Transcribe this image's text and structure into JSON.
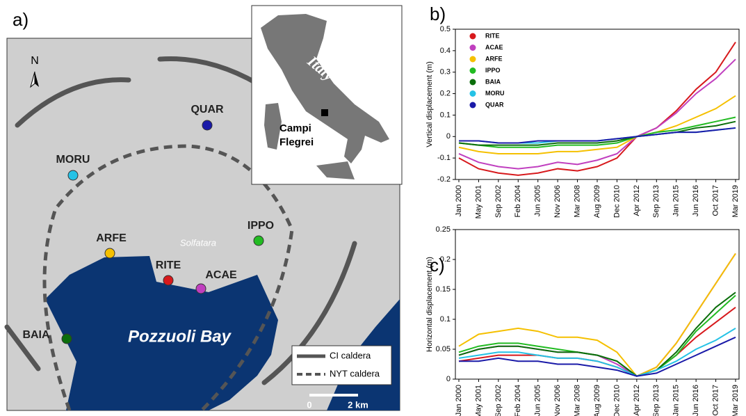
{
  "map": {
    "panel": "a)",
    "north": "N",
    "stations": [
      "QUAR",
      "MORU",
      "IPPO",
      "ARFE",
      "RITE",
      "ACAE",
      "BAIA"
    ],
    "solfatara": "Solfatara",
    "bay": "Pozzuoli Bay",
    "inset": {
      "country": "Italy",
      "site": [
        "Campi",
        "Flegrei"
      ]
    },
    "legend": [
      "CI caldera",
      "NYT caldera"
    ],
    "scale": [
      "0",
      "2 km"
    ]
  },
  "chart_data": [
    {
      "type": "line",
      "panel": "b)",
      "ylabel": "Vertical displacement (m)",
      "legend": "upper left",
      "categories": [
        "Jan 2000",
        "May 2001",
        "Sep 2002",
        "Feb 2004",
        "Jun 2005",
        "Nov 2006",
        "Mar 2008",
        "Aug 2009",
        "Dec 2010",
        "Apr 2012",
        "Sep 2013",
        "Jan 2015",
        "Jun 2016",
        "Oct 2017",
        "Mar 2019"
      ],
      "ylim": [
        -0.2,
        0.5
      ],
      "yticks": [
        -0.2,
        -0.1,
        0,
        0.1,
        0.2,
        0.3,
        0.4,
        0.5
      ],
      "series": [
        {
          "name": "RITE",
          "color": "#d7191c",
          "values": [
            -0.1,
            -0.15,
            -0.17,
            -0.18,
            -0.17,
            -0.15,
            -0.16,
            -0.14,
            -0.1,
            0.0,
            0.04,
            0.12,
            0.22,
            0.3,
            0.44
          ]
        },
        {
          "name": "ACAE",
          "color": "#c03fbf",
          "values": [
            -0.08,
            -0.12,
            -0.14,
            -0.15,
            -0.14,
            -0.12,
            -0.13,
            -0.11,
            -0.08,
            0.0,
            0.04,
            0.11,
            0.2,
            0.27,
            0.36
          ]
        },
        {
          "name": "ARFE",
          "color": "#f5c000",
          "values": [
            -0.05,
            -0.07,
            -0.08,
            -0.08,
            -0.08,
            -0.07,
            -0.07,
            -0.06,
            -0.05,
            0.0,
            0.02,
            0.05,
            0.09,
            0.13,
            0.19
          ]
        },
        {
          "name": "IPPO",
          "color": "#22bb22",
          "values": [
            -0.03,
            -0.04,
            -0.05,
            -0.05,
            -0.05,
            -0.04,
            -0.04,
            -0.04,
            -0.03,
            0.0,
            0.02,
            0.03,
            0.05,
            0.07,
            0.09
          ]
        },
        {
          "name": "BAIA",
          "color": "#0b6e0b",
          "values": [
            -0.03,
            -0.04,
            -0.04,
            -0.04,
            -0.04,
            -0.03,
            -0.03,
            -0.03,
            -0.02,
            0.0,
            0.01,
            0.02,
            0.04,
            0.05,
            0.07
          ]
        },
        {
          "name": "MORU",
          "color": "#25c2e6",
          "values": [
            -0.02,
            -0.02,
            -0.03,
            -0.03,
            -0.03,
            -0.02,
            -0.02,
            -0.02,
            -0.01,
            0.0,
            0.01,
            0.02,
            0.02,
            0.03,
            0.04
          ]
        },
        {
          "name": "QUAR",
          "color": "#1a1aa8",
          "values": [
            -0.02,
            -0.02,
            -0.03,
            -0.03,
            -0.02,
            -0.02,
            -0.02,
            -0.02,
            -0.01,
            0.0,
            0.01,
            0.02,
            0.02,
            0.03,
            0.04
          ]
        }
      ]
    },
    {
      "type": "line",
      "panel": "c)",
      "ylabel": "Horizontal displacement (m)",
      "categories": [
        "Jan 2000",
        "May 2001",
        "Sep 2002",
        "Feb 2004",
        "Jun 2005",
        "Nov 2006",
        "Mar 2008",
        "Aug 2009",
        "Dec 2010",
        "Apr 2012",
        "Sep 2013",
        "Jan 2015",
        "Jun 2016",
        "Oct 2017",
        "Mar 2019"
      ],
      "ylim": [
        0,
        0.25
      ],
      "yticks": [
        0,
        0.05,
        0.1,
        0.15,
        0.2,
        0.25
      ],
      "series": [
        {
          "color": "#d7191c",
          "values": [
            0.03,
            0.035,
            0.04,
            0.04,
            0.04,
            0.035,
            0.035,
            0.03,
            0.02,
            0.005,
            0.015,
            0.04,
            0.07,
            0.095,
            0.12
          ]
        },
        {
          "color": "#c03fbf",
          "values": [
            0.04,
            0.05,
            0.055,
            0.055,
            0.05,
            0.045,
            0.045,
            0.04,
            0.025,
            0.005,
            0.02,
            0.06,
            0.11,
            0.16,
            0.21
          ]
        },
        {
          "color": "#f5c000",
          "values": [
            0.055,
            0.075,
            0.08,
            0.085,
            0.08,
            0.07,
            0.07,
            0.065,
            0.045,
            0.005,
            0.02,
            0.06,
            0.11,
            0.16,
            0.21
          ]
        },
        {
          "color": "#22bb22",
          "values": [
            0.045,
            0.055,
            0.06,
            0.06,
            0.055,
            0.05,
            0.045,
            0.04,
            0.03,
            0.005,
            0.015,
            0.04,
            0.08,
            0.11,
            0.14
          ]
        },
        {
          "color": "#0b6e0b",
          "values": [
            0.04,
            0.05,
            0.055,
            0.055,
            0.05,
            0.045,
            0.045,
            0.04,
            0.03,
            0.005,
            0.015,
            0.045,
            0.085,
            0.12,
            0.145
          ]
        },
        {
          "color": "#25c2e6",
          "values": [
            0.035,
            0.04,
            0.045,
            0.045,
            0.04,
            0.035,
            0.035,
            0.03,
            0.02,
            0.005,
            0.015,
            0.03,
            0.05,
            0.065,
            0.085
          ]
        },
        {
          "color": "#1a1aa8",
          "values": [
            0.03,
            0.03,
            0.035,
            0.03,
            0.03,
            0.025,
            0.025,
            0.02,
            0.015,
            0.005,
            0.01,
            0.025,
            0.04,
            0.055,
            0.07
          ]
        }
      ]
    }
  ]
}
